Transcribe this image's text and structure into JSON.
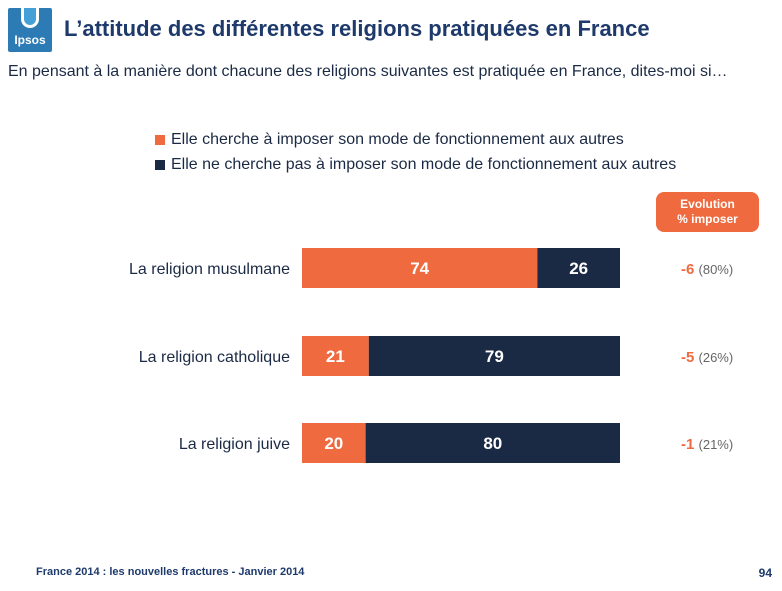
{
  "logo": {
    "text": "Ipsos"
  },
  "title": "L’attitude des différentes religions pratiquées en France",
  "subtitle": "En pensant à la manière dont chacune des religions suivantes est pratiquée en France, dites-moi si…",
  "colors": {
    "impose": "#ef6a3e",
    "not_impose": "#1b2a44",
    "brand": "#2d7bb5",
    "title": "#1e3a6b"
  },
  "evolution_header": {
    "line1": "Evolution",
    "line2": "% imposer"
  },
  "chart_data": {
    "type": "bar",
    "orientation": "horizontal",
    "stacked": true,
    "categories": [
      "La religion musulmane",
      "La religion catholique",
      "La religion juive"
    ],
    "series": [
      {
        "name": "Elle cherche à imposer son mode de fonctionnement aux autres",
        "values": [
          74,
          21,
          20
        ],
        "color": "#ef6a3e"
      },
      {
        "name": "Elle ne cherche pas à imposer son mode de fonctionnement aux autres",
        "values": [
          26,
          79,
          80
        ],
        "color": "#1b2a44"
      }
    ],
    "xlim": [
      0,
      100
    ],
    "evolution": [
      {
        "change": "-6",
        "previous": "(80%)"
      },
      {
        "change": "-5",
        "previous": "(26%)"
      },
      {
        "change": "-1",
        "previous": "(21%)"
      }
    ],
    "legend_position": "top"
  },
  "footer": {
    "text": "France 2014 : les nouvelles fractures - Janvier 2014",
    "page": "94"
  }
}
